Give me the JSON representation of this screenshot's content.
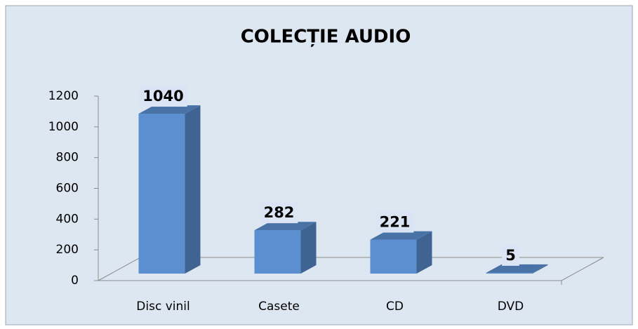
{
  "chart_data": {
    "type": "bar3d",
    "title": "COLECȚIE AUDIO",
    "categories": [
      "Disc vinil",
      "Casete",
      "CD",
      "DVD"
    ],
    "values": [
      1040,
      282,
      221,
      5
    ],
    "color": "#5b8fd0",
    "ylim": [
      0,
      1200
    ],
    "yticks": [
      0,
      200,
      400,
      600,
      800,
      1000,
      1200
    ]
  }
}
